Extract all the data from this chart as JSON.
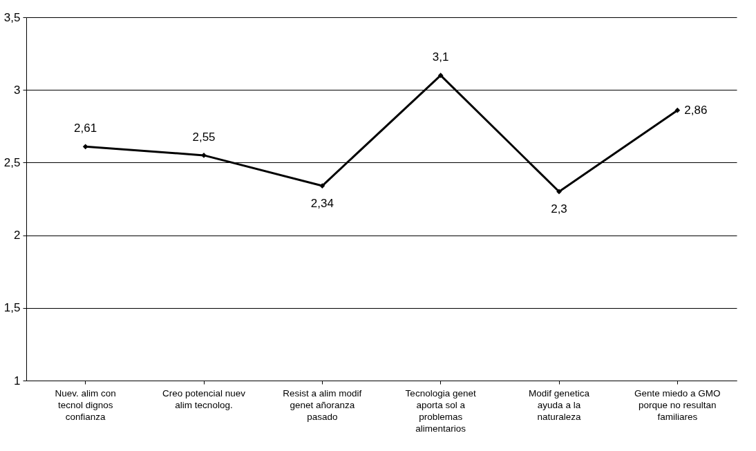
{
  "chart_data": {
    "type": "line",
    "categories": [
      "Nuev. alim con tecnol dignos confianza",
      "Creo potencial nuev alim tecnolog.",
      "Resist a alim modif genet añoranza pasado",
      "Tecnologia genet aporta sol a problemas alimentarios",
      "Modif genetica ayuda a la naturaleza",
      "Gente miedo a GMO porque no resultan familiares"
    ],
    "series": [
      {
        "color": "#000000",
        "values": [
          2.61,
          2.55,
          2.34,
          3.1,
          2.3,
          2.86
        ],
        "value_labels": [
          "2,61",
          "2,55",
          "2,34",
          "3,1",
          "2,3",
          "2,86"
        ]
      }
    ],
    "ylim": [
      1,
      3.5
    ],
    "yticks": [
      1,
      {
        "value": 1.5,
        "label": "1,5"
      },
      2,
      {
        "value": 2.5,
        "label": "2,5"
      },
      3,
      {
        "value": 3.5,
        "label": "3,5"
      }
    ],
    "grid": "y",
    "marker": "diamond",
    "line_style": "solid"
  }
}
